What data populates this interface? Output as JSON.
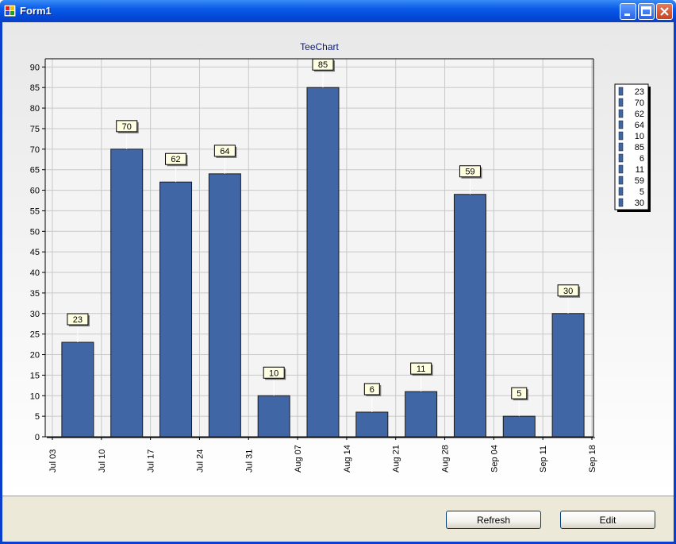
{
  "window": {
    "title": "Form1"
  },
  "chart_data": {
    "type": "bar",
    "title": "TeeChart",
    "categories": [
      "Jul 03",
      "Jul 10",
      "Jul 17",
      "Jul 24",
      "Jul 31",
      "Aug 07",
      "Aug 14",
      "Aug 21",
      "Aug 28",
      "Sep 04",
      "Sep 11"
    ],
    "x_ticks": [
      "Jul 03",
      "Jul 10",
      "Jul 17",
      "Jul 24",
      "Jul 31",
      "Aug 07",
      "Aug 14",
      "Aug 21",
      "Aug 28",
      "Sep 04",
      "Sep 11",
      "Sep 18"
    ],
    "values": [
      23,
      70,
      62,
      64,
      10,
      85,
      6,
      11,
      59,
      5,
      30
    ],
    "ylim": [
      0,
      92
    ],
    "yticks": [
      0,
      5,
      10,
      15,
      20,
      25,
      30,
      35,
      40,
      45,
      50,
      55,
      60,
      65,
      70,
      75,
      80,
      85,
      90
    ],
    "grid": true,
    "legend": "right",
    "legend_entries": [
      "23",
      "70",
      "62",
      "64",
      "10",
      "85",
      "6",
      "11",
      "59",
      "5",
      "30"
    ],
    "bar_color": "#4166a5"
  },
  "buttons": {
    "refresh": "Refresh",
    "edit": "Edit"
  }
}
